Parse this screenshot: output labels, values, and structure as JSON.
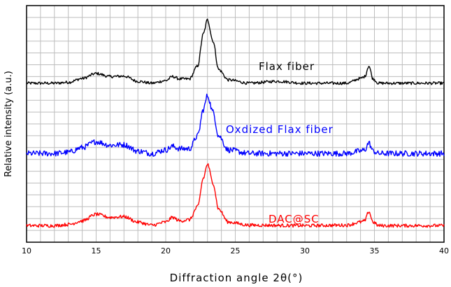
{
  "chart_data": {
    "type": "line",
    "title": "",
    "xlabel": "Diffraction angle 2θ(°)",
    "ylabel": "Relative intensity (a.u.)",
    "xlim": [
      10,
      40
    ],
    "ylim": [
      0,
      1
    ],
    "x_ticks": [
      10,
      15,
      20,
      25,
      30,
      35,
      40
    ],
    "grid": true,
    "legend": "inline labels",
    "series": [
      {
        "name": "Flax fiber",
        "color": "#000000",
        "points": [
          [
            10,
            0.672
          ],
          [
            12,
            0.672
          ],
          [
            13,
            0.676
          ],
          [
            14,
            0.692
          ],
          [
            15,
            0.713
          ],
          [
            16,
            0.7
          ],
          [
            17,
            0.702
          ],
          [
            18,
            0.68
          ],
          [
            19,
            0.672
          ],
          [
            20,
            0.683
          ],
          [
            20.5,
            0.7
          ],
          [
            21,
            0.69
          ],
          [
            21.7,
            0.69
          ],
          [
            22.3,
            0.745
          ],
          [
            22.7,
            0.88
          ],
          [
            23,
            0.94
          ],
          [
            23.4,
            0.85
          ],
          [
            23.8,
            0.73
          ],
          [
            24.5,
            0.686
          ],
          [
            26,
            0.672
          ],
          [
            28,
            0.68
          ],
          [
            30,
            0.672
          ],
          [
            33,
            0.672
          ],
          [
            34,
            0.692
          ],
          [
            34.3,
            0.7
          ],
          [
            34.6,
            0.745
          ],
          [
            34.9,
            0.69
          ],
          [
            35.3,
            0.672
          ],
          [
            40,
            0.672
          ]
        ]
      },
      {
        "name": "Oxdized Flax fiber",
        "color": "#0000ff",
        "points": [
          [
            10,
            0.375
          ],
          [
            12,
            0.375
          ],
          [
            13,
            0.38
          ],
          [
            14,
            0.4
          ],
          [
            15,
            0.425
          ],
          [
            16,
            0.41
          ],
          [
            17,
            0.412
          ],
          [
            18,
            0.385
          ],
          [
            19,
            0.375
          ],
          [
            20,
            0.39
          ],
          [
            20.5,
            0.405
          ],
          [
            21,
            0.395
          ],
          [
            21.7,
            0.395
          ],
          [
            22.3,
            0.45
          ],
          [
            22.7,
            0.56
          ],
          [
            23,
            0.62
          ],
          [
            23.4,
            0.55
          ],
          [
            23.8,
            0.45
          ],
          [
            24.5,
            0.39
          ],
          [
            26,
            0.375
          ],
          [
            30,
            0.375
          ],
          [
            33,
            0.375
          ],
          [
            34,
            0.385
          ],
          [
            34.3,
            0.39
          ],
          [
            34.6,
            0.42
          ],
          [
            34.9,
            0.385
          ],
          [
            35.3,
            0.375
          ],
          [
            40,
            0.375
          ]
        ]
      },
      {
        "name": "DAC@SC",
        "color": "#ff0000",
        "points": [
          [
            10,
            0.07
          ],
          [
            12,
            0.07
          ],
          [
            13,
            0.075
          ],
          [
            14,
            0.09
          ],
          [
            15,
            0.118
          ],
          [
            16,
            0.105
          ],
          [
            17,
            0.108
          ],
          [
            18,
            0.085
          ],
          [
            19,
            0.072
          ],
          [
            20,
            0.085
          ],
          [
            20.5,
            0.105
          ],
          [
            21,
            0.09
          ],
          [
            21.7,
            0.095
          ],
          [
            22.3,
            0.15
          ],
          [
            22.7,
            0.27
          ],
          [
            23,
            0.33
          ],
          [
            23.4,
            0.25
          ],
          [
            23.8,
            0.14
          ],
          [
            24.5,
            0.085
          ],
          [
            26,
            0.072
          ],
          [
            30,
            0.07
          ],
          [
            33,
            0.072
          ],
          [
            34,
            0.085
          ],
          [
            34.3,
            0.09
          ],
          [
            34.6,
            0.13
          ],
          [
            34.9,
            0.085
          ],
          [
            35.3,
            0.07
          ],
          [
            40,
            0.07
          ]
        ]
      }
    ]
  }
}
